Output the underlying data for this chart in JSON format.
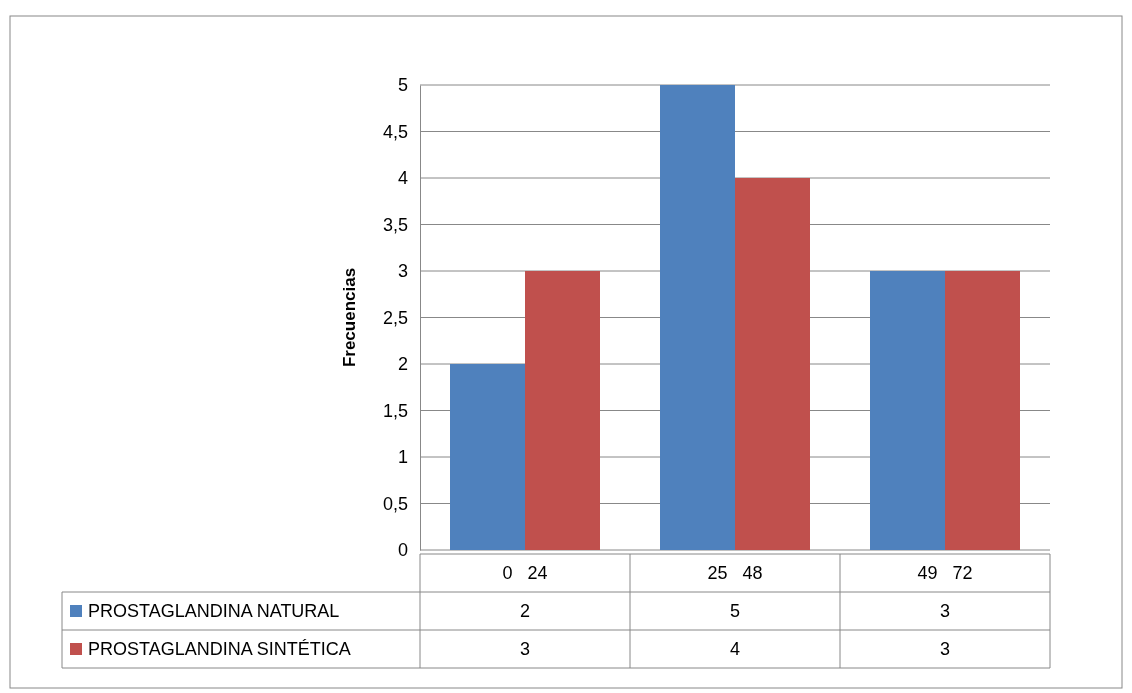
{
  "chart_data": {
    "type": "bar",
    "ylabel": "Frecuencias",
    "categories": [
      "0   24",
      "25   48",
      "49   72"
    ],
    "series": [
      {
        "name": "PROSTAGLANDINA NATURAL",
        "color": "#4f81bd",
        "values": [
          2,
          5,
          3
        ]
      },
      {
        "name": "PROSTAGLANDINA SINTÉTICA",
        "color": "#c0504d",
        "values": [
          3,
          4,
          3
        ]
      }
    ],
    "ylim": [
      0,
      5
    ],
    "yticks": [
      0,
      {
        "value": 0.5,
        "label": "0,5"
      },
      1,
      {
        "value": 1.5,
        "label": "1,5"
      },
      2,
      {
        "value": 2.5,
        "label": "2,5"
      },
      3,
      {
        "value": 3.5,
        "label": "3,5"
      },
      4,
      {
        "value": 4.5,
        "label": "4,5"
      },
      5
    ],
    "grid": "y",
    "legend": "bottom",
    "data_labels": true
  }
}
